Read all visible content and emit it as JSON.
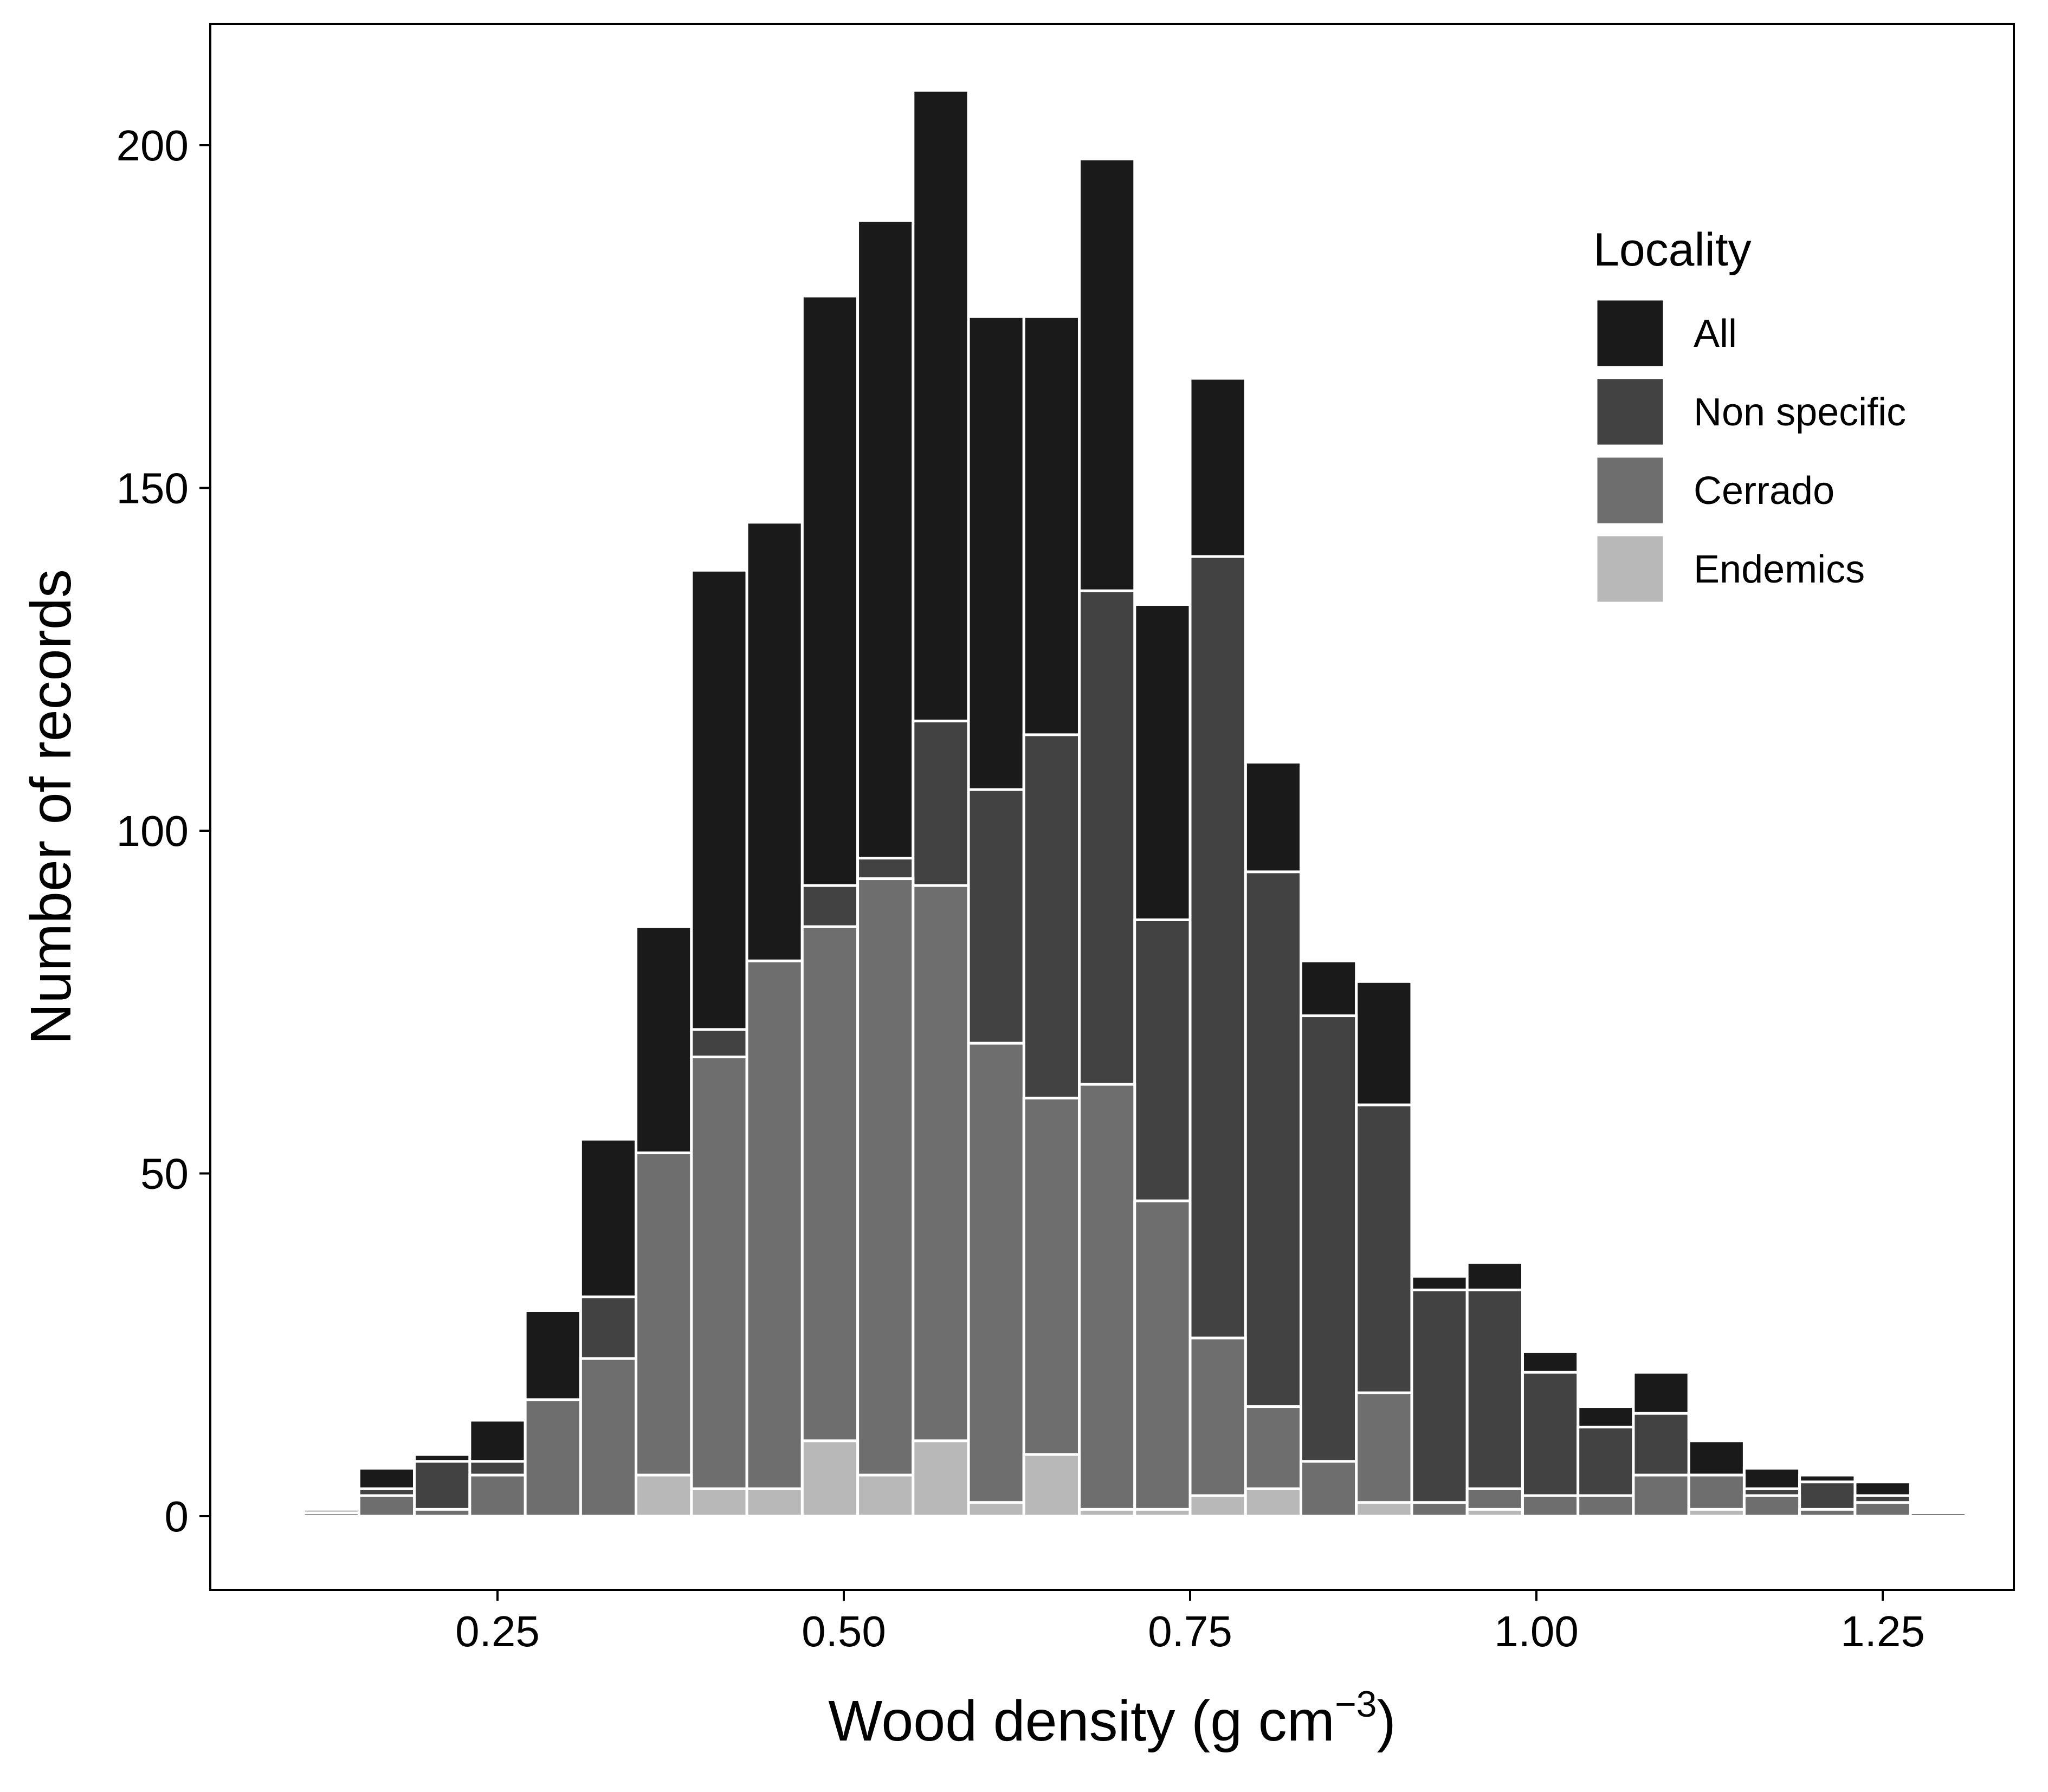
{
  "chart_data": {
    "type": "bar",
    "stacked": "overlaid",
    "xlabel": "Wood density",
    "xlabel_unit": "(g cm",
    "xlabel_unit_exponent": "−3",
    "xlabel_unit_close": ")",
    "ylabel": "Number of records",
    "xlim": [
      0.1,
      1.3
    ],
    "ylim": [
      -10,
      218
    ],
    "x_ticks": [
      0.25,
      0.5,
      0.75,
      1.0,
      1.25
    ],
    "x_tick_labels": [
      "0.25",
      "0.50",
      "0.75",
      "1.00",
      "1.25"
    ],
    "y_ticks": [
      0,
      50,
      100,
      150,
      200
    ],
    "y_tick_labels": [
      "0",
      "50",
      "100",
      "150",
      "200"
    ],
    "bin_width": 0.04,
    "bin_centers": [
      0.13,
      0.17,
      0.21,
      0.25,
      0.29,
      0.33,
      0.37,
      0.41,
      0.45,
      0.49,
      0.53,
      0.57,
      0.61,
      0.65,
      0.69,
      0.73,
      0.77,
      0.81,
      0.85,
      0.89,
      0.93,
      0.97,
      1.01,
      1.05,
      1.09,
      1.13,
      1.17,
      1.21,
      1.25,
      1.29
    ],
    "grid": false,
    "legend": {
      "title": "Locality",
      "position": "top-right"
    },
    "series": [
      {
        "name": "All",
        "color": "#1a1a1a",
        "values": [
          1,
          7,
          9,
          14,
          30,
          55,
          86,
          138,
          145,
          178,
          189,
          208,
          175,
          175,
          198,
          133,
          166,
          110,
          81,
          78,
          35,
          37,
          24,
          16,
          21,
          11,
          7,
          6,
          5,
          0.5
        ]
      },
      {
        "name": "Non specific",
        "color": "#424242",
        "values": [
          1,
          4,
          8,
          8,
          17,
          32,
          53,
          71,
          81,
          92,
          96,
          116,
          106,
          114,
          135,
          87,
          140,
          94,
          73,
          60,
          33,
          33,
          21,
          13,
          15,
          6,
          4,
          5,
          3,
          0.5
        ]
      },
      {
        "name": "Cerrado",
        "color": "#6e6e6e",
        "values": [
          0.5,
          3,
          1,
          6,
          17,
          23,
          53,
          67,
          81,
          86,
          93,
          92,
          69,
          61,
          63,
          46,
          26,
          16,
          8,
          18,
          2,
          4,
          3,
          3,
          6,
          6,
          3,
          1,
          2,
          0
        ]
      },
      {
        "name": "Endemics",
        "color": "#b8b8b8",
        "values": [
          0,
          0,
          0,
          0,
          0,
          0,
          6,
          4,
          4,
          11,
          6,
          11,
          2,
          9,
          1,
          1,
          3,
          4,
          0,
          2,
          0,
          1,
          0,
          0,
          0,
          1,
          0,
          0,
          0,
          0
        ]
      }
    ]
  }
}
